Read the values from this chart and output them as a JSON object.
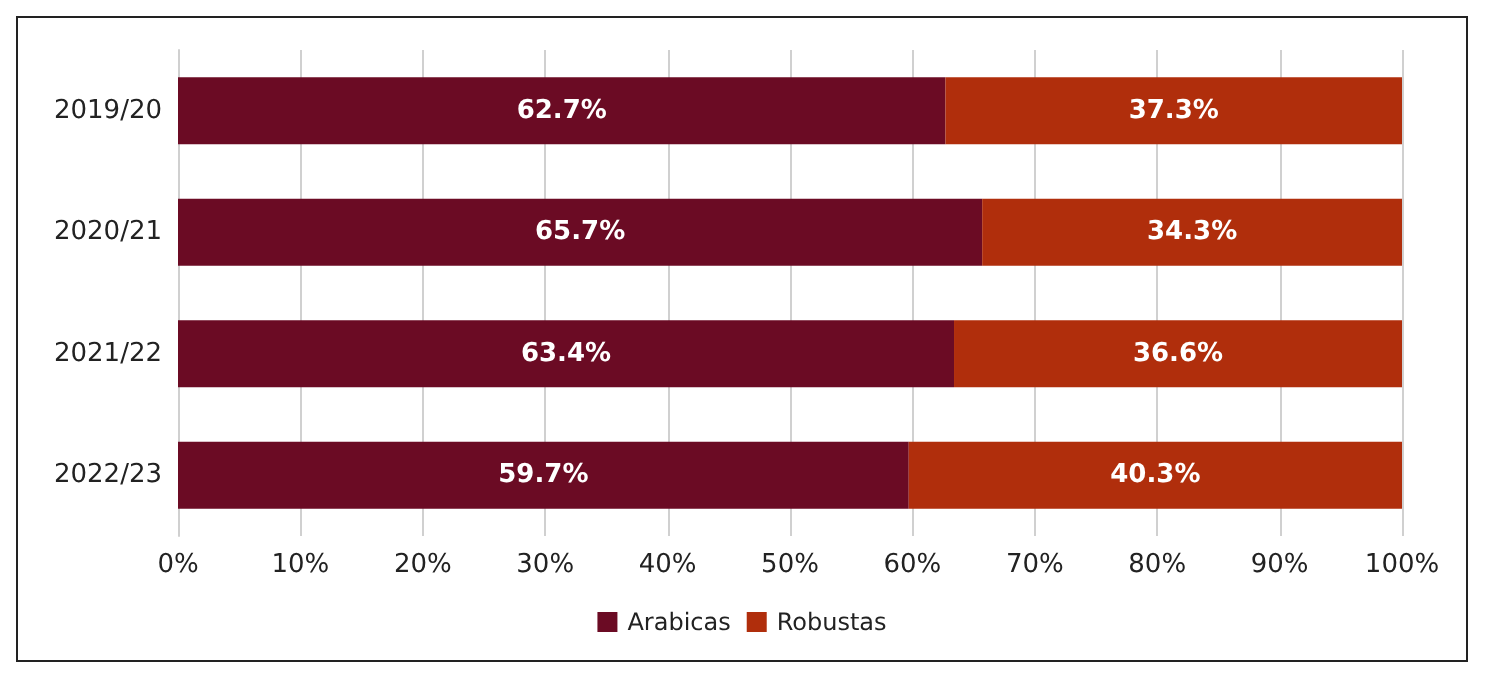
{
  "chart_data": {
    "type": "bar",
    "orientation": "horizontal",
    "stacked": true,
    "categories": [
      "2019/20",
      "2020/21",
      "2021/22",
      "2022/23"
    ],
    "series": [
      {
        "name": "Arabicas",
        "color": "#6b0b24",
        "values": [
          62.7,
          65.7,
          63.4,
          59.7
        ],
        "value_labels": [
          "62.7%",
          "65.7%",
          "63.4%",
          "59.7%"
        ]
      },
      {
        "name": "Robustas",
        "color": "#b02e0c",
        "values": [
          37.3,
          34.3,
          36.6,
          40.3
        ],
        "value_labels": [
          "37.3%",
          "34.3%",
          "36.6%",
          "40.3%"
        ]
      }
    ],
    "xlim": [
      0,
      100
    ],
    "xticks": [
      {
        "value": 0,
        "label": "0%"
      },
      {
        "value": 10,
        "label": "10%"
      },
      {
        "value": 20,
        "label": "20%"
      },
      {
        "value": 30,
        "label": "30%"
      },
      {
        "value": 40,
        "label": "40%"
      },
      {
        "value": 50,
        "label": "50%"
      },
      {
        "value": 60,
        "label": "60%"
      },
      {
        "value": 70,
        "label": "70%"
      },
      {
        "value": 80,
        "label": "80%"
      },
      {
        "value": 90,
        "label": "90%"
      },
      {
        "value": 100,
        "label": "100%"
      }
    ],
    "grid": "x",
    "legend": "bottom"
  }
}
